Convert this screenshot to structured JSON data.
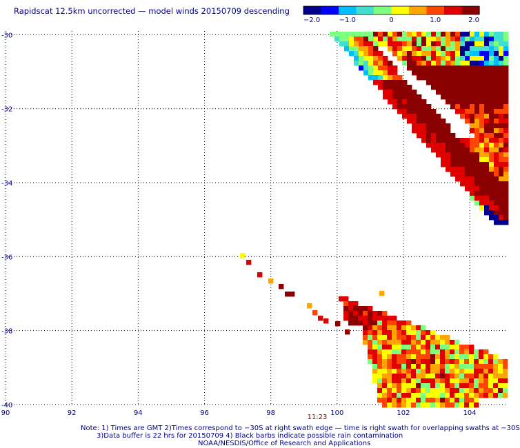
{
  "title": "Rapidscat 12.5km uncorrected — model winds 20150709 descending",
  "colorbar": {
    "min": -2.0,
    "max": 2.0,
    "tick_labels": [
      "−2.0",
      "−1.0",
      "0",
      "1.0",
      "2.0"
    ],
    "tick_values": [
      -2.0,
      -1.0,
      0,
      1.0,
      2.0
    ],
    "palette": [
      "#00008b",
      "#0000ff",
      "#00bfff",
      "#40e0d0",
      "#7fff7f",
      "#ffff00",
      "#ffa500",
      "#ff4500",
      "#e00000",
      "#8b0000"
    ]
  },
  "time_label": "11:23",
  "notes": [
    "Note: 1) Times are GMT 2)Times correspond to −30S at right swath edge — time is right swath for overlapping swaths at −30S",
    "3)Data buffer is 22 hrs for 20150709 4) Black barbs indicate possible rain contamination",
    "NOAA/NESDIS/Office of Research and Applications"
  ],
  "colors": {
    "text": "#00008b",
    "grid": "#000000",
    "time_label": "#8b0000"
  },
  "chart_data": {
    "type": "heatmap",
    "title": "Rapidscat 12.5km uncorrected — model winds 20150709 descending",
    "xlabel": "",
    "ylabel": "",
    "xlim": [
      90,
      105.1
    ],
    "ylim": [
      -40,
      -29.9
    ],
    "x_ticks": [
      90,
      92,
      94,
      96,
      98,
      100,
      102,
      104
    ],
    "x_tick_labels": [
      "90",
      "92",
      "94",
      "96",
      "98",
      "100",
      "102",
      "104"
    ],
    "y_ticks": [
      -30,
      -32,
      -34,
      -36,
      -38,
      -40
    ],
    "y_tick_labels": [
      "-30",
      "-32",
      "-34",
      "-36",
      "-38",
      "-40"
    ],
    "grid": true,
    "value_range": [
      -2.0,
      2.0
    ],
    "regions": [
      {
        "name": "upper swath",
        "lon": [
          99.8,
          105.1
        ],
        "lat": [
          -35.2,
          -29.9
        ],
        "dominant_values": [
          1.2,
          2.0
        ]
      },
      {
        "name": "isolated cells",
        "lon": [
          97.0,
          99.8
        ],
        "lat": [
          -38.0,
          -36.0
        ],
        "dominant_values": [
          0.5,
          1.5
        ]
      },
      {
        "name": "lower swath",
        "lon": [
          99.8,
          105.1
        ],
        "lat": [
          -40.0,
          -37.1
        ],
        "dominant_values": [
          0.5,
          1.8
        ]
      }
    ]
  }
}
